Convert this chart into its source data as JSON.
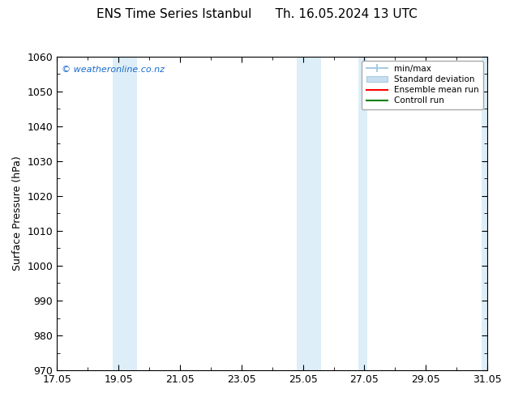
{
  "title": "ENS Time Series Istanbul      Th. 16.05.2024 13 UTC",
  "ylabel": "Surface Pressure (hPa)",
  "ylim": [
    970,
    1060
  ],
  "yticks": [
    970,
    980,
    990,
    1000,
    1010,
    1020,
    1030,
    1040,
    1050,
    1060
  ],
  "xtick_positions": [
    0,
    2,
    4,
    6,
    8,
    10,
    12,
    14
  ],
  "xtick_labels": [
    "17.05",
    "19.05",
    "21.05",
    "23.05",
    "25.05",
    "27.05",
    "29.05",
    "31.05"
  ],
  "xlim": [
    0,
    14
  ],
  "shaded_bands": [
    {
      "x_start": 1.8,
      "x_end": 2.6,
      "color": "#ddeef8"
    },
    {
      "x_start": 7.8,
      "x_end": 8.6,
      "color": "#ddeef8"
    },
    {
      "x_start": 9.8,
      "x_end": 10.1,
      "color": "#ddeef8"
    },
    {
      "x_start": 13.8,
      "x_end": 14.0,
      "color": "#ddeef8"
    }
  ],
  "watermark_text": "© weatheronline.co.nz",
  "watermark_color": "#1a6bcc",
  "background_color": "#ffffff",
  "legend_minmax_color": "#a8cce0",
  "legend_std_color": "#c8dff0",
  "legend_mean_color": "#ff0000",
  "legend_ctrl_color": "#008000",
  "title_fontsize": 11,
  "tick_fontsize": 9,
  "ylabel_fontsize": 9
}
